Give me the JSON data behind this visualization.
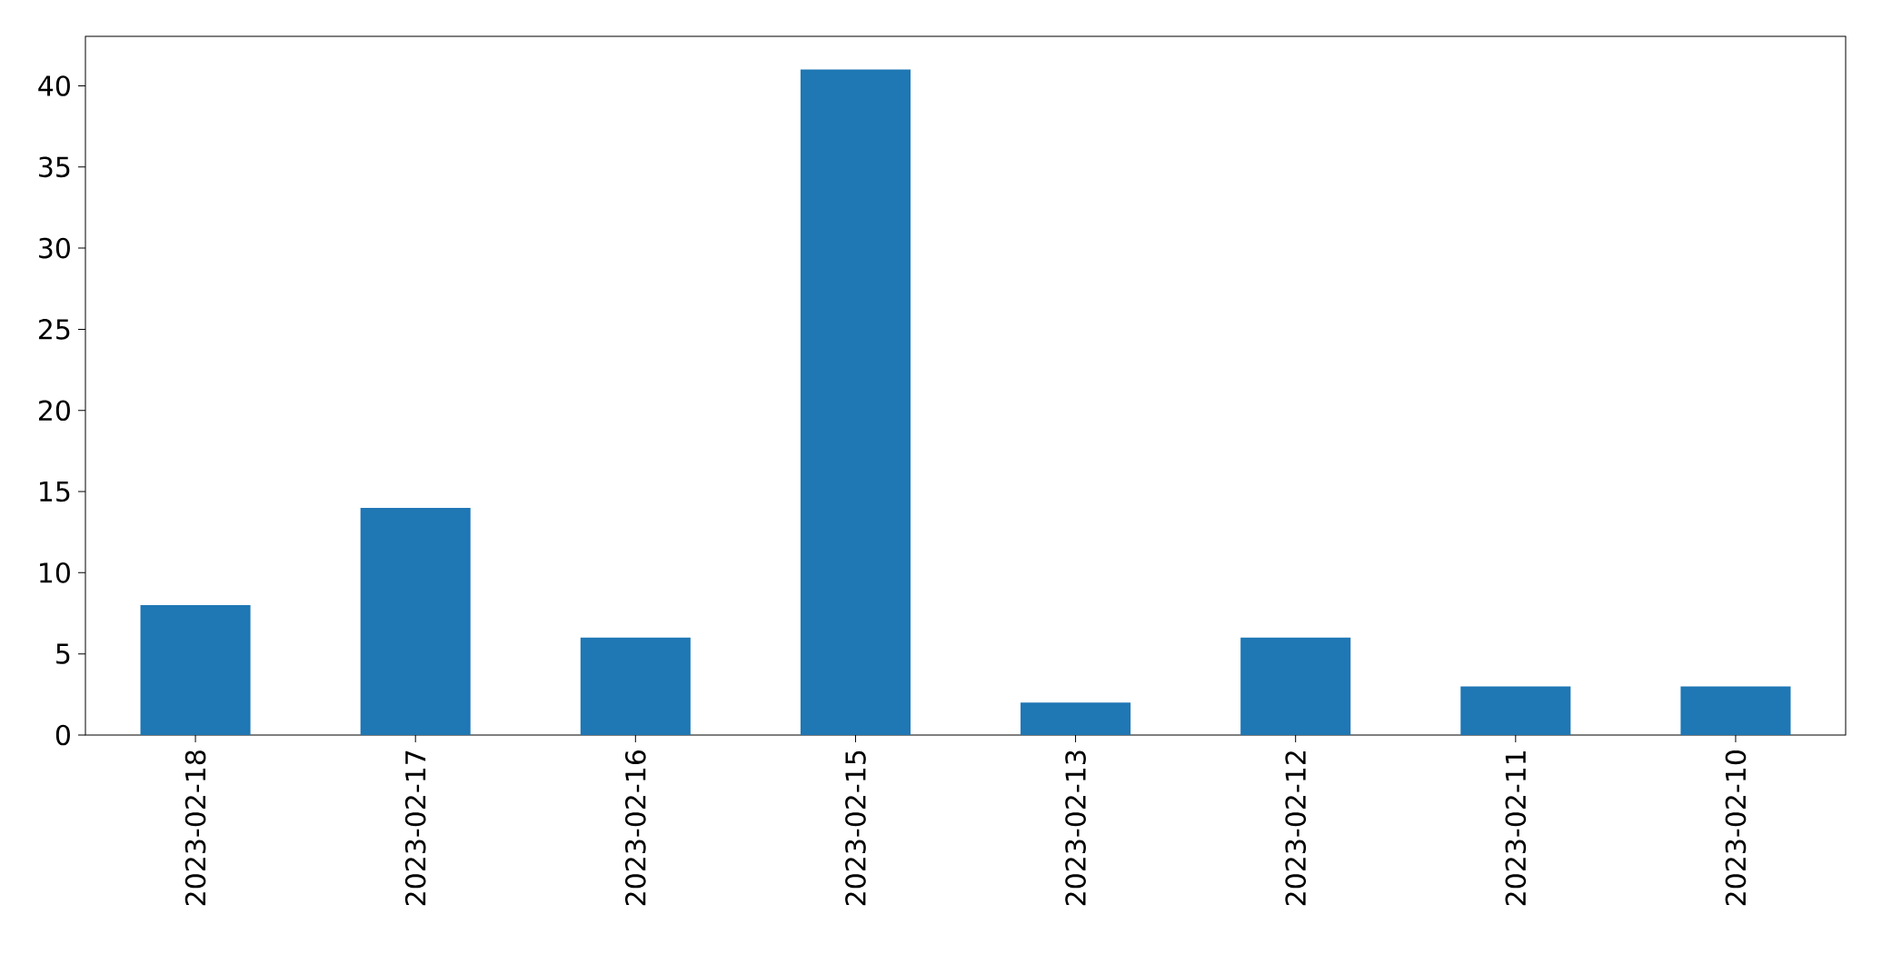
{
  "chart_data": {
    "type": "bar",
    "categories": [
      "2023-02-18",
      "2023-02-17",
      "2023-02-16",
      "2023-02-15",
      "2023-02-13",
      "2023-02-12",
      "2023-02-11",
      "2023-02-10"
    ],
    "values": [
      8,
      14,
      6,
      41,
      2,
      6,
      3,
      3
    ],
    "color": "#1f77b4",
    "ylim": [
      0,
      43.05
    ],
    "yticks": [
      0,
      5,
      10,
      15,
      20,
      25,
      30,
      35,
      40
    ]
  }
}
